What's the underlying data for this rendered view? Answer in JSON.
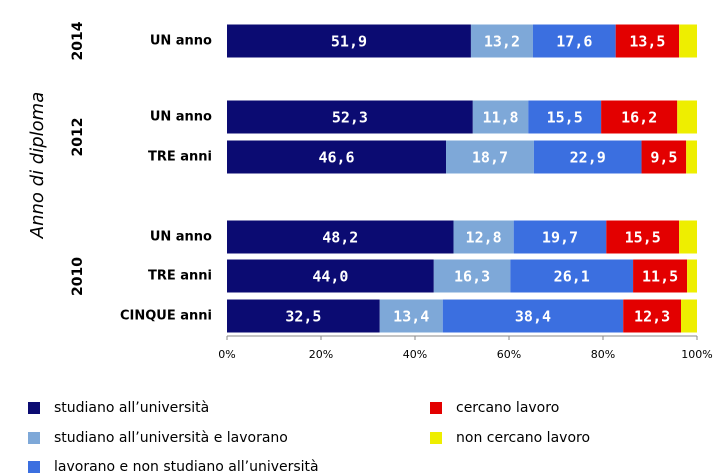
{
  "chart_data": {
    "type": "stacked-bar-horizontal",
    "y_axis_label": "Anno di diploma",
    "categories": [
      "UN anno",
      "UN anno",
      "TRE anni",
      "UN anno",
      "TRE anni",
      "CINQUE anni"
    ],
    "category_groups": [
      "2014",
      "2012",
      "2012",
      "2010",
      "2010",
      "2010"
    ],
    "series": [
      {
        "name": "studiano all’università",
        "color": "#0b0b72",
        "values": [
          51.9,
          52.3,
          46.6,
          48.2,
          44.0,
          32.5
        ],
        "value_labels": [
          "51,9",
          "52,3",
          "46,6",
          "48,2",
          "44,0",
          "32,5"
        ]
      },
      {
        "name": "studiano all’università e lavorano",
        "color": "#7ea8d8",
        "values": [
          13.2,
          11.8,
          18.7,
          12.8,
          16.3,
          13.4
        ],
        "value_labels": [
          "13,2",
          "11,8",
          "18,7",
          "12,8",
          "16,3",
          "13,4"
        ]
      },
      {
        "name": "lavorano e non studiano all’università",
        "color": "#3b6fe0",
        "values": [
          17.6,
          15.5,
          22.9,
          19.7,
          26.1,
          38.4
        ],
        "value_labels": [
          "17,6",
          "15,5",
          "22,9",
          "19,7",
          "26,1",
          "38,4"
        ]
      },
      {
        "name": "cercano lavoro",
        "color": "#e30000",
        "values": [
          13.5,
          16.2,
          9.5,
          15.5,
          11.5,
          12.3
        ],
        "value_labels": [
          "13,5",
          "16,2",
          "9,5",
          "15,5",
          "11,5",
          "12,3"
        ]
      },
      {
        "name": "non cercano lavoro",
        "color": "#eeee00",
        "values": [
          3.8,
          4.2,
          2.3,
          3.8,
          2.1,
          3.4
        ]
      }
    ],
    "xlim": [
      0,
      100
    ],
    "xticks": [
      {
        "value": 0,
        "label": "0%"
      },
      {
        "value": 20,
        "label": "20%"
      },
      {
        "value": 40,
        "label": "40%"
      },
      {
        "value": 60,
        "label": "60%"
      },
      {
        "value": 80,
        "label": "80%"
      },
      {
        "value": 100,
        "label": "100%"
      }
    ]
  }
}
